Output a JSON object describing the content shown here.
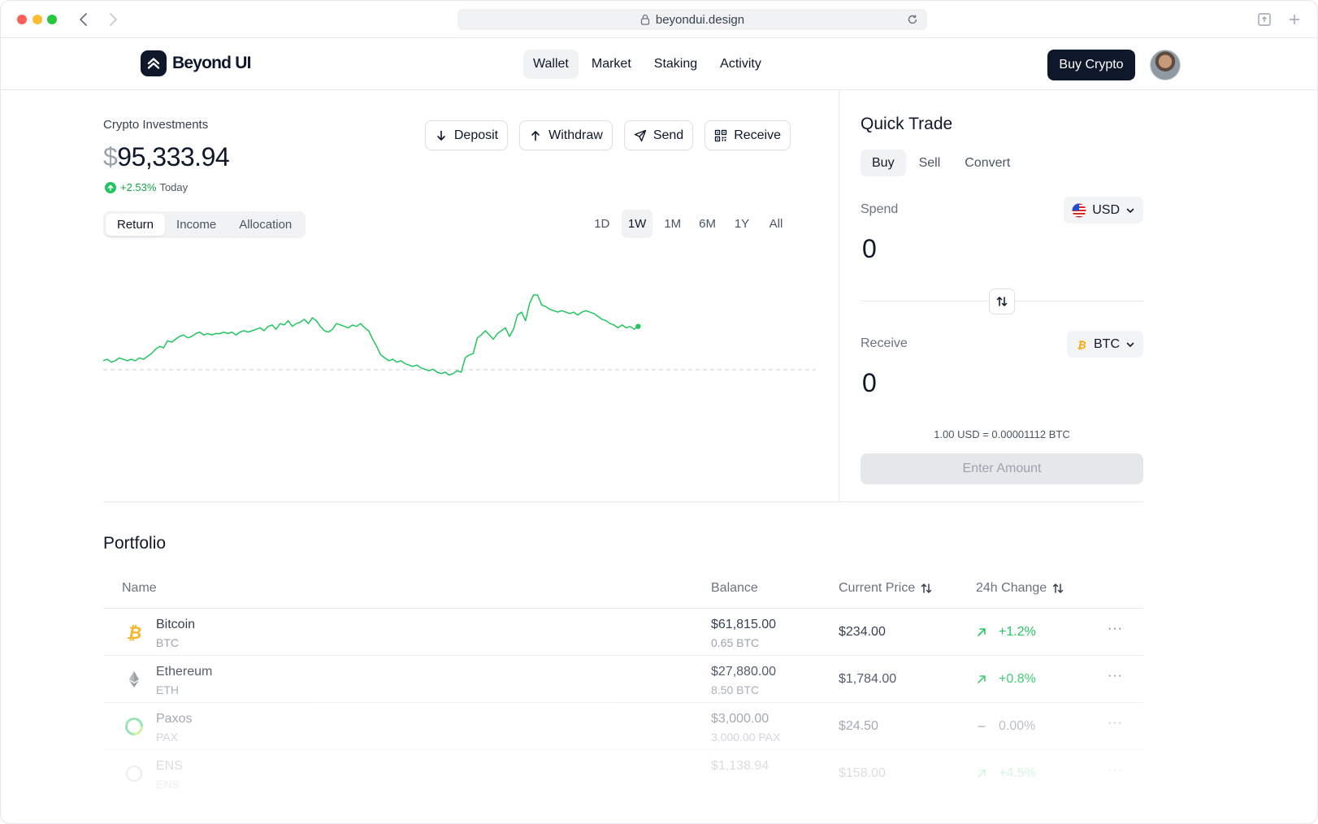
{
  "browser": {
    "url": "beyondui.design"
  },
  "header": {
    "brand": "Beyond UI",
    "nav": [
      {
        "label": "Wallet",
        "active": true
      },
      {
        "label": "Market",
        "active": false
      },
      {
        "label": "Staking",
        "active": false
      },
      {
        "label": "Activity",
        "active": false
      }
    ],
    "buy_label": "Buy Crypto"
  },
  "investments": {
    "title": "Crypto Investments",
    "currency_symbol": "$",
    "amount": "95,333.94",
    "change_pct": "+2.53%",
    "change_period": "Today",
    "actions": {
      "deposit": "Deposit",
      "withdraw": "Withdraw",
      "send": "Send",
      "receive": "Receive"
    },
    "tabs": [
      "Return",
      "Income",
      "Allocation"
    ],
    "active_tab": "Return",
    "ranges": [
      "1D",
      "1W",
      "1M",
      "6M",
      "1Y",
      "All"
    ],
    "active_range": "1W",
    "line_color": "#22c55e",
    "chart_points": [
      12,
      13,
      11,
      12,
      14,
      13,
      12,
      13,
      12,
      14,
      13,
      15,
      17,
      20,
      22,
      21,
      26,
      25,
      27,
      29,
      30,
      28,
      29,
      31,
      32,
      30,
      31,
      30,
      31,
      31,
      32,
      31,
      32,
      30,
      32,
      33,
      32,
      33,
      34,
      35,
      33,
      36,
      37,
      34,
      38,
      37,
      40,
      36,
      38,
      39,
      41,
      38,
      42,
      40,
      36,
      33,
      32,
      34,
      38,
      37,
      36,
      35,
      37,
      36,
      38,
      35,
      33,
      27,
      22,
      16,
      14,
      12,
      13,
      11,
      12,
      10,
      9,
      8,
      9,
      7,
      6,
      5,
      6,
      4,
      3,
      4,
      2,
      3,
      5,
      4,
      14,
      16,
      17,
      28,
      30,
      33,
      30,
      27,
      31,
      33,
      35,
      29,
      34,
      44,
      46,
      40,
      52,
      58,
      58,
      51,
      50,
      48,
      47,
      46,
      47,
      46,
      45,
      46,
      44,
      46,
      47,
      46,
      45,
      43,
      41,
      40,
      38,
      37,
      35,
      37,
      35,
      36,
      34,
      36
    ]
  },
  "quick_trade": {
    "title": "Quick Trade",
    "tabs": [
      "Buy",
      "Sell",
      "Convert"
    ],
    "active_tab": "Buy",
    "spend_label": "Spend",
    "spend_currency": "USD",
    "spend_value": "0",
    "receive_label": "Receive",
    "receive_currency": "BTC",
    "receive_value": "0",
    "rate": "1.00 USD = 0.00001112 BTC",
    "submit_label": "Enter Amount"
  },
  "portfolio": {
    "title": "Portfolio",
    "columns": {
      "name": "Name",
      "balance": "Balance",
      "price": "Current Price",
      "change": "24h Change"
    },
    "rows": [
      {
        "name": "Bitcoin",
        "symbol": "BTC",
        "balance": "$61,815.00",
        "balance_sub": "0.65 BTC",
        "price": "$234.00",
        "change": "+1.2%",
        "trend": "up",
        "icon": "bitcoin-icon"
      },
      {
        "name": "Ethereum",
        "symbol": "ETH",
        "balance": "$27,880.00",
        "balance_sub": "8.50 BTC",
        "price": "$1,784.00",
        "change": "+0.8%",
        "trend": "up",
        "icon": "ethereum-icon"
      },
      {
        "name": "Paxos",
        "symbol": "PAX",
        "balance": "$3,000.00",
        "balance_sub": "3,000.00 PAX",
        "price": "$24.50",
        "change": "0.00%",
        "trend": "flat",
        "icon": "paxos-icon"
      },
      {
        "name": "ENS",
        "symbol": "ENS",
        "balance": "$1,138.94",
        "balance_sub": "",
        "price": "$158.00",
        "change": "+4.5%",
        "trend": "up",
        "icon": "ens-icon"
      }
    ]
  }
}
